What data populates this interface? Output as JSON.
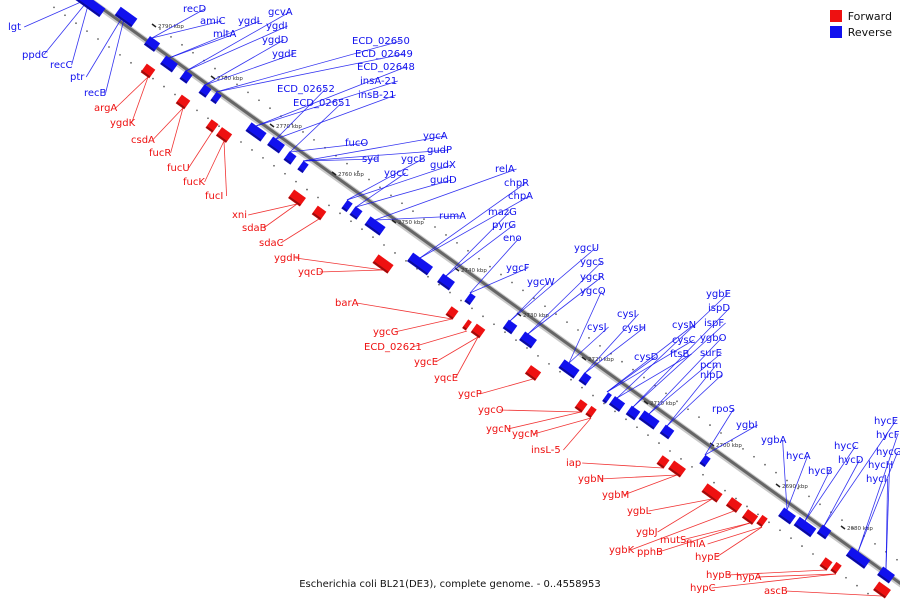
{
  "legend": {
    "forward_label": "Forward",
    "reverse_label": "Reverse",
    "forward_color": "#ee1111",
    "reverse_color": "#1111ee"
  },
  "caption": "Escherichia coli BL21(DE3), complete genome. - 0..4558953",
  "scale_labels": [
    "2790 kbp",
    "2780 kbp",
    "2770 kbp",
    "2760 kbp",
    "2750 kbp",
    "2740 kbp",
    "2730 kbp",
    "2720 kbp",
    "2710 kbp",
    "2700 kbp",
    "2690 kbp",
    "2680 kbp"
  ],
  "reverse_genes": [
    "lgt",
    "ppdC",
    "recC",
    "ptr",
    "recB",
    "recD",
    "amiC",
    "mltA",
    "ygdL",
    "gcvA",
    "ygdI",
    "ygdD",
    "ygdE",
    "ECD_02650",
    "ECD_02649",
    "ECD_02648",
    "insA-21",
    "insB-21",
    "ECD_02652",
    "ECD_02651",
    "fucO",
    "syd",
    "ygcA",
    "gudP",
    "ygcB",
    "gudX",
    "ygcC",
    "gudD",
    "rumA",
    "relA",
    "chpR",
    "chpA",
    "mazG",
    "pyrG",
    "eno",
    "ygcF",
    "ygcW",
    "ygcU",
    "ygcS",
    "ygcR",
    "ygcQ",
    "cysJ",
    "cysI",
    "cysH",
    "cysD",
    "cysN",
    "cysC",
    "ftsB",
    "ygbE",
    "ispD",
    "ispF",
    "ygbO",
    "surE",
    "pcm",
    "nlpD",
    "rpoS",
    "ygbI",
    "ygbA",
    "hycA",
    "hycB",
    "hycC",
    "hycD",
    "hycE",
    "hycF",
    "hycG",
    "hycH",
    "hycI"
  ],
  "forward_genes": [
    "argA",
    "ygdK",
    "csdA",
    "fucR",
    "fucU",
    "fucK",
    "fucI",
    "xni",
    "sdaB",
    "sdaC",
    "ygdH",
    "yqcD",
    "barA",
    "ygcG",
    "ECD_02621",
    "ygcE",
    "yqcE",
    "ygcP",
    "ygcO",
    "ygcN",
    "ygcM",
    "insL-5",
    "iap",
    "ygbN",
    "ygbM",
    "ygbL",
    "ygbJ",
    "ygbK",
    "pphB",
    "mutS",
    "fhlA",
    "hypE",
    "hypB",
    "hypA",
    "hypC",
    "ascB"
  ]
}
